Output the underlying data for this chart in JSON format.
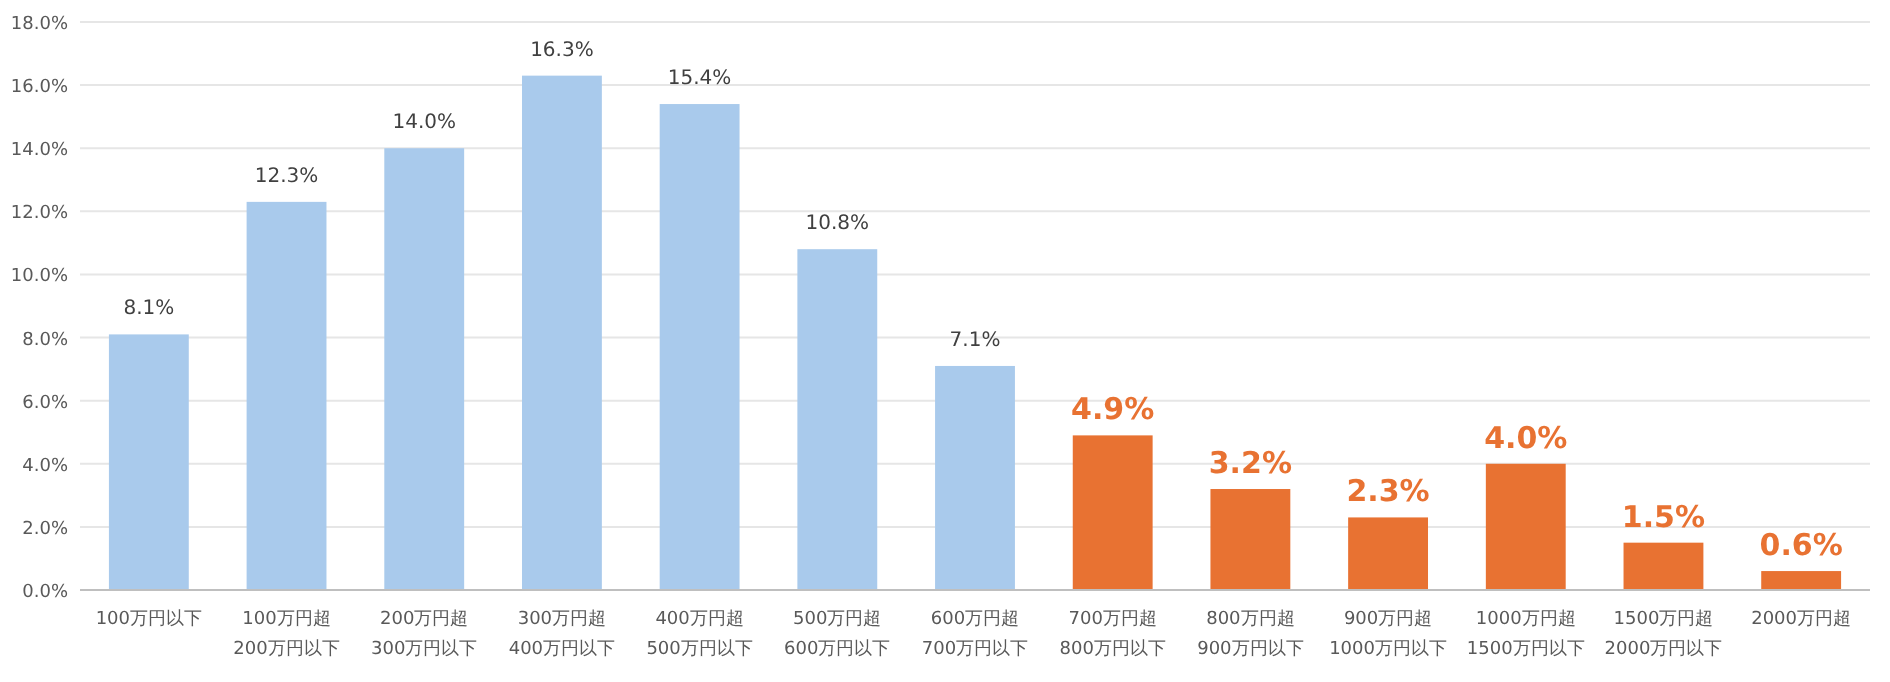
{
  "chart_data": {
    "type": "bar",
    "categories": [
      "100万円以下",
      "100万円超\n200万円以下",
      "200万円超\n300万円以下",
      "300万円超\n400万円以下",
      "400万円超\n500万円以下",
      "500万円超\n600万円以下",
      "600万円超\n700万円以下",
      "700万円超\n800万円以下",
      "800万円超\n900万円以下",
      "900万円超\n1000万円以下",
      "1000万円超\n1500万円以下",
      "1500万円超\n2000万円以下",
      "2000万円超"
    ],
    "values": [
      8.1,
      12.3,
      14.0,
      16.3,
      15.4,
      10.8,
      7.1,
      4.9,
      3.2,
      2.3,
      4.0,
      1.5,
      0.6
    ],
    "colors": [
      "#a9caec",
      "#a9caec",
      "#a9caec",
      "#a9caec",
      "#a9caec",
      "#a9caec",
      "#a9caec",
      "#e87232",
      "#e87232",
      "#e87232",
      "#e87232",
      "#e87232",
      "#e87232"
    ],
    "value_labels": [
      "8.1%",
      "12.3%",
      "14.0%",
      "16.3%",
      "15.4%",
      "10.8%",
      "7.1%",
      "4.9%",
      "3.2%",
      "2.3%",
      "4.0%",
      "1.5%",
      "0.6%"
    ],
    "ylim": [
      0,
      18
    ],
    "yticks": [
      {
        "value": 0,
        "label": "0.0%"
      },
      {
        "value": 2,
        "label": "2.0%"
      },
      {
        "value": 4,
        "label": "4.0%"
      },
      {
        "value": 6,
        "label": "6.0%"
      },
      {
        "value": 8,
        "label": "8.0%"
      },
      {
        "value": 10,
        "label": "10.0%"
      },
      {
        "value": 12,
        "label": "12.0%"
      },
      {
        "value": 14,
        "label": "14.0%"
      },
      {
        "value": 16,
        "label": "16.0%"
      },
      {
        "value": 18,
        "label": "18.0%"
      }
    ],
    "grid": "y"
  }
}
